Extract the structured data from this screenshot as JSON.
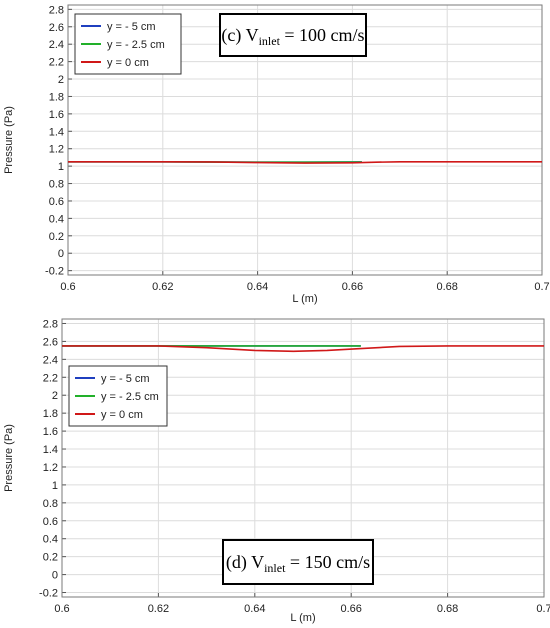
{
  "chart_data": [
    {
      "type": "line",
      "annotation": {
        "prefix": "(c) V",
        "subscript": "inlet",
        "suffix": " = 100 cm/s"
      },
      "xlabel": "L (m)",
      "ylabel": "Pressure (Pa)",
      "xlim": [
        0.6,
        0.7
      ],
      "ylim": [
        -0.25,
        2.85
      ],
      "xticks": [
        "0.6",
        "0.62",
        "0.64",
        "0.66",
        "0.68",
        "0.7"
      ],
      "yticks": [
        "-0.2",
        "0",
        "0.2",
        "0.4",
        "0.6",
        "0.8",
        "1",
        "1.2",
        "1.4",
        "1.6",
        "1.8",
        "2",
        "2.2",
        "2.4",
        "2.6",
        "2.8"
      ],
      "grid": true,
      "legend_position": "top-left",
      "series": [
        {
          "name": "y = - 5 cm",
          "color": "#1f3fbf",
          "x": [
            0.6,
            0.62,
            0.64,
            0.65,
            0.662
          ],
          "y": [
            1.05,
            1.05,
            1.045,
            1.045,
            1.048
          ]
        },
        {
          "name": "y = - 2.5 cm",
          "color": "#22b02a",
          "x": [
            0.6,
            0.62,
            0.64,
            0.65,
            0.662
          ],
          "y": [
            1.05,
            1.05,
            1.045,
            1.045,
            1.046
          ]
        },
        {
          "name": "y = 0 cm",
          "color": "#d01818",
          "x": [
            0.6,
            0.62,
            0.63,
            0.64,
            0.65,
            0.66,
            0.665,
            0.67,
            0.68,
            0.7
          ],
          "y": [
            1.05,
            1.05,
            1.048,
            1.04,
            1.035,
            1.038,
            1.045,
            1.05,
            1.05,
            1.05
          ]
        }
      ]
    },
    {
      "type": "line",
      "annotation": {
        "prefix": "(d) V",
        "subscript": "inlet",
        "suffix": " = 150 cm/s"
      },
      "xlabel": "L (m)",
      "ylabel": "Pressure (Pa)",
      "xlim": [
        0.6,
        0.7
      ],
      "ylim": [
        -0.25,
        2.85
      ],
      "xticks": [
        "0.6",
        "0.62",
        "0.64",
        "0.66",
        "0.68",
        "0.7"
      ],
      "yticks": [
        "-0.2",
        "0",
        "0.2",
        "0.4",
        "0.6",
        "0.8",
        "1",
        "1.2",
        "1.4",
        "1.6",
        "1.8",
        "2",
        "2.2",
        "2.4",
        "2.6",
        "2.8"
      ],
      "grid": true,
      "legend_position": "top-left",
      "series": [
        {
          "name": "y = - 5 cm",
          "color": "#1f3fbf",
          "x": [
            0.6,
            0.62,
            0.64,
            0.662
          ],
          "y": [
            2.55,
            2.55,
            2.55,
            2.55
          ]
        },
        {
          "name": "y = - 2.5 cm",
          "color": "#22b02a",
          "x": [
            0.6,
            0.62,
            0.64,
            0.662
          ],
          "y": [
            2.55,
            2.55,
            2.55,
            2.55
          ]
        },
        {
          "name": "y = 0 cm",
          "color": "#d01818",
          "x": [
            0.6,
            0.62,
            0.63,
            0.64,
            0.648,
            0.655,
            0.662,
            0.67,
            0.68,
            0.7
          ],
          "y": [
            2.55,
            2.55,
            2.53,
            2.5,
            2.49,
            2.5,
            2.52,
            2.545,
            2.55,
            2.55
          ]
        }
      ]
    }
  ]
}
